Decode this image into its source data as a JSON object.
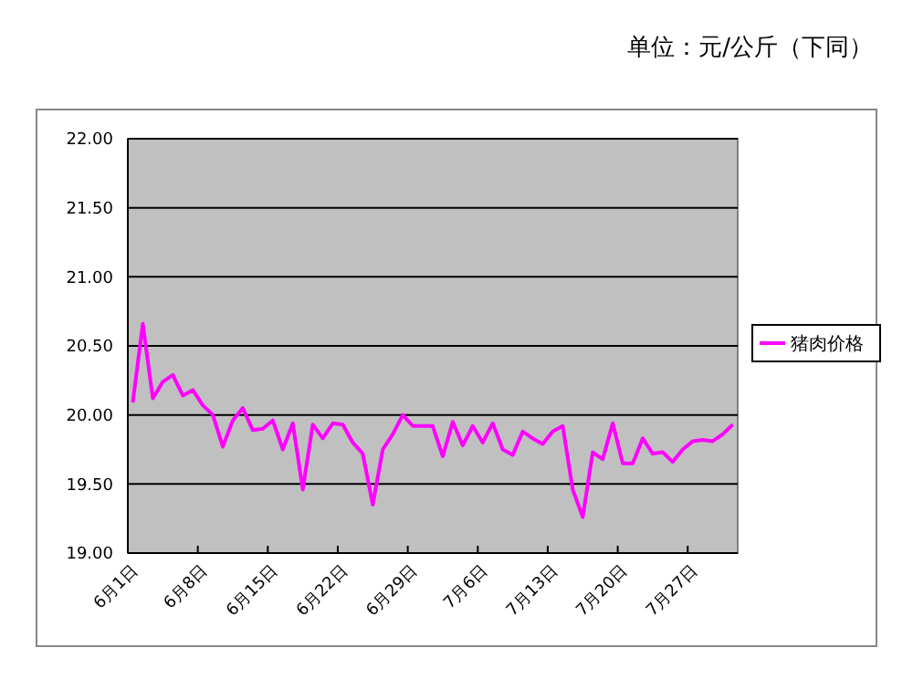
{
  "chart_data": {
    "type": "line",
    "annotations": [
      "单位：元/公斤（下同）"
    ],
    "categories": [
      "6月1日",
      null,
      null,
      null,
      null,
      null,
      null,
      "6月8日",
      null,
      null,
      null,
      null,
      null,
      null,
      "6月15日",
      null,
      null,
      null,
      null,
      null,
      null,
      "6月22日",
      null,
      null,
      null,
      null,
      null,
      null,
      "6月29日",
      null,
      null,
      null,
      null,
      null,
      null,
      "7月6日",
      null,
      null,
      null,
      null,
      null,
      null,
      "7月13日",
      null,
      null,
      null,
      null,
      null,
      null,
      "7月20日",
      null,
      null,
      null,
      null,
      null,
      null,
      "7月27日",
      null,
      null,
      null,
      null
    ],
    "series": [
      {
        "name": "猪肉价格",
        "color": "#ff00ff",
        "values": [
          20.09,
          20.66,
          20.12,
          20.24,
          20.29,
          20.14,
          20.18,
          20.07,
          20.0,
          19.77,
          19.96,
          20.05,
          19.89,
          19.9,
          19.96,
          19.75,
          19.94,
          19.46,
          19.93,
          19.83,
          19.94,
          19.93,
          19.8,
          19.72,
          19.35,
          19.75,
          19.86,
          20.0,
          19.92,
          19.92,
          19.92,
          19.7,
          19.95,
          19.78,
          19.92,
          19.8,
          19.94,
          19.75,
          19.71,
          19.88,
          19.83,
          19.79,
          19.88,
          19.92,
          19.46,
          19.26,
          19.73,
          19.68,
          19.94,
          19.65,
          19.65,
          19.83,
          19.72,
          19.73,
          19.66,
          19.75,
          19.81,
          19.82,
          19.81,
          19.86,
          19.93
        ]
      }
    ],
    "ylim": [
      19,
      22
    ],
    "yticks": [
      {
        "value": 19,
        "label": "19.00"
      },
      {
        "value": 19.5,
        "label": "19.50"
      },
      {
        "value": 20,
        "label": "20.00"
      },
      {
        "value": 20.5,
        "label": "20.50"
      },
      {
        "value": 21,
        "label": "21.00"
      },
      {
        "value": 21.5,
        "label": "21.50"
      },
      {
        "value": 22,
        "label": "22.00"
      }
    ],
    "grid": "y",
    "legend": "right",
    "marker": "none",
    "line_style": "solid"
  }
}
